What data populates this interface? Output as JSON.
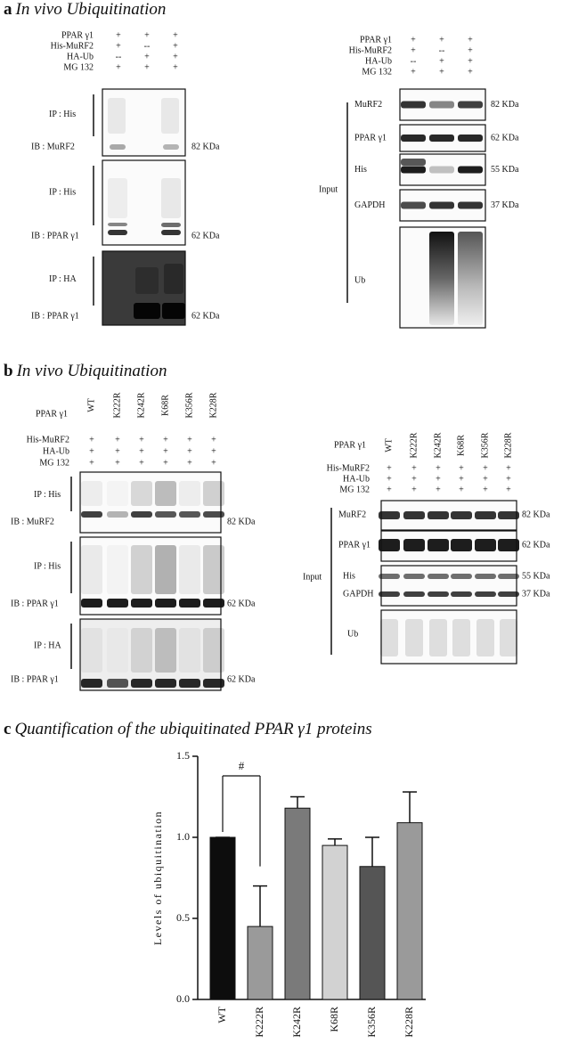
{
  "panel_a": {
    "label": "a",
    "title": "In vivo Ubiquitination",
    "left": {
      "conditions": [
        {
          "name": "PPAR γ1",
          "lanes": [
            "+",
            "+",
            "+"
          ]
        },
        {
          "name": "His-MuRF2",
          "lanes": [
            "+",
            "--",
            "+"
          ]
        },
        {
          "name": "HA-Ub",
          "lanes": [
            "--",
            "+",
            "+"
          ]
        },
        {
          "name": "MG 132",
          "lanes": [
            "+",
            "+",
            "+"
          ]
        }
      ],
      "blots": [
        {
          "ip": "IP : His",
          "ib": "IB : MuRF2",
          "size": "82 KDa"
        },
        {
          "ip": "IP : His",
          "ib": "IB : PPAR γ1",
          "size": "62 KDa"
        },
        {
          "ip": "IP : HA",
          "ib": "IB : PPAR γ1",
          "size": "62 KDa"
        }
      ]
    },
    "right": {
      "conditions": [
        {
          "name": "PPAR γ1",
          "lanes": [
            "+",
            "+",
            "+"
          ]
        },
        {
          "name": "His-MuRF2",
          "lanes": [
            "+",
            "--",
            "+"
          ]
        },
        {
          "name": "HA-Ub",
          "lanes": [
            "--",
            "+",
            "+"
          ]
        },
        {
          "name": "MG 132",
          "lanes": [
            "+",
            "+",
            "+"
          ]
        }
      ],
      "group": "Input",
      "blots": [
        {
          "name": "MuRF2",
          "size": "82 KDa"
        },
        {
          "name": "PPAR γ1",
          "size": "62 KDa"
        },
        {
          "name": "His",
          "size": "55 KDa"
        },
        {
          "name": "GAPDH",
          "size": "37 KDa"
        },
        {
          "name": "Ub"
        }
      ]
    }
  },
  "panel_b": {
    "label": "b",
    "title": "In vivo Ubiquitination",
    "left": {
      "lane_header": "PPAR γ1",
      "lanes": [
        "WT",
        "K222R",
        "K242R",
        "K68R",
        "K356R",
        "K228R"
      ],
      "conditions": [
        {
          "name": "His-MuRF2",
          "lanes": [
            "+",
            "+",
            "+",
            "+",
            "+",
            "+"
          ]
        },
        {
          "name": "HA-Ub",
          "lanes": [
            "+",
            "+",
            "+",
            "+",
            "+",
            "+"
          ]
        },
        {
          "name": "MG 132",
          "lanes": [
            "+",
            "+",
            "+",
            "+",
            "+",
            "+"
          ]
        }
      ],
      "blots": [
        {
          "ip": "IP : His",
          "ib": "IB : MuRF2",
          "size": "82 KDa"
        },
        {
          "ip": "IP : His",
          "ib": "IB : PPAR γ1",
          "size": "62 KDa"
        },
        {
          "ip": "IP : HA",
          "ib": "IB : PPAR γ1",
          "size": "62 KDa"
        }
      ]
    },
    "right": {
      "lane_header": "PPAR γ1",
      "lanes": [
        "WT",
        "K222R",
        "K242R",
        "K68R",
        "K356R",
        "K228R"
      ],
      "conditions": [
        {
          "name": "His-MuRF2",
          "lanes": [
            "+",
            "+",
            "+",
            "+",
            "+",
            "+"
          ]
        },
        {
          "name": "HA-Ub",
          "lanes": [
            "+",
            "+",
            "+",
            "+",
            "+",
            "+"
          ]
        },
        {
          "name": "MG 132",
          "lanes": [
            "+",
            "+",
            "+",
            "+",
            "+",
            "+"
          ]
        }
      ],
      "group": "Input",
      "blots": [
        {
          "name": "MuRF2",
          "size": "82 KDa"
        },
        {
          "name": "PPAR γ1",
          "size": "62 KDa"
        },
        {
          "name": "His",
          "size": "55 KDa"
        },
        {
          "name": "GAPDH",
          "size": "37 KDa"
        },
        {
          "name": "Ub"
        }
      ]
    }
  },
  "chart_data": {
    "type": "bar",
    "label": "c",
    "title": "Quantification of the ubiquitinated PPAR γ1 proteins",
    "y_label": "Levels of ubiquitination",
    "categories": [
      "WT",
      "K222R",
      "K242R",
      "K68R",
      "K356R",
      "K228R"
    ],
    "values": [
      1.0,
      0.45,
      1.18,
      0.95,
      0.82,
      1.09
    ],
    "errors": [
      0,
      0.25,
      0.07,
      0.04,
      0.18,
      0.19
    ],
    "colors": [
      "#0d0d0d",
      "#9a9a9a",
      "#7a7a7a",
      "#d2d2d2",
      "#555555",
      "#9a9a9a"
    ],
    "ylim": [
      0,
      1.5
    ],
    "yticks": [
      {
        "value": 0,
        "label": "0.0"
      },
      0.5,
      {
        "value": 1,
        "label": "1.0"
      },
      1.5
    ],
    "annotation": "#"
  }
}
